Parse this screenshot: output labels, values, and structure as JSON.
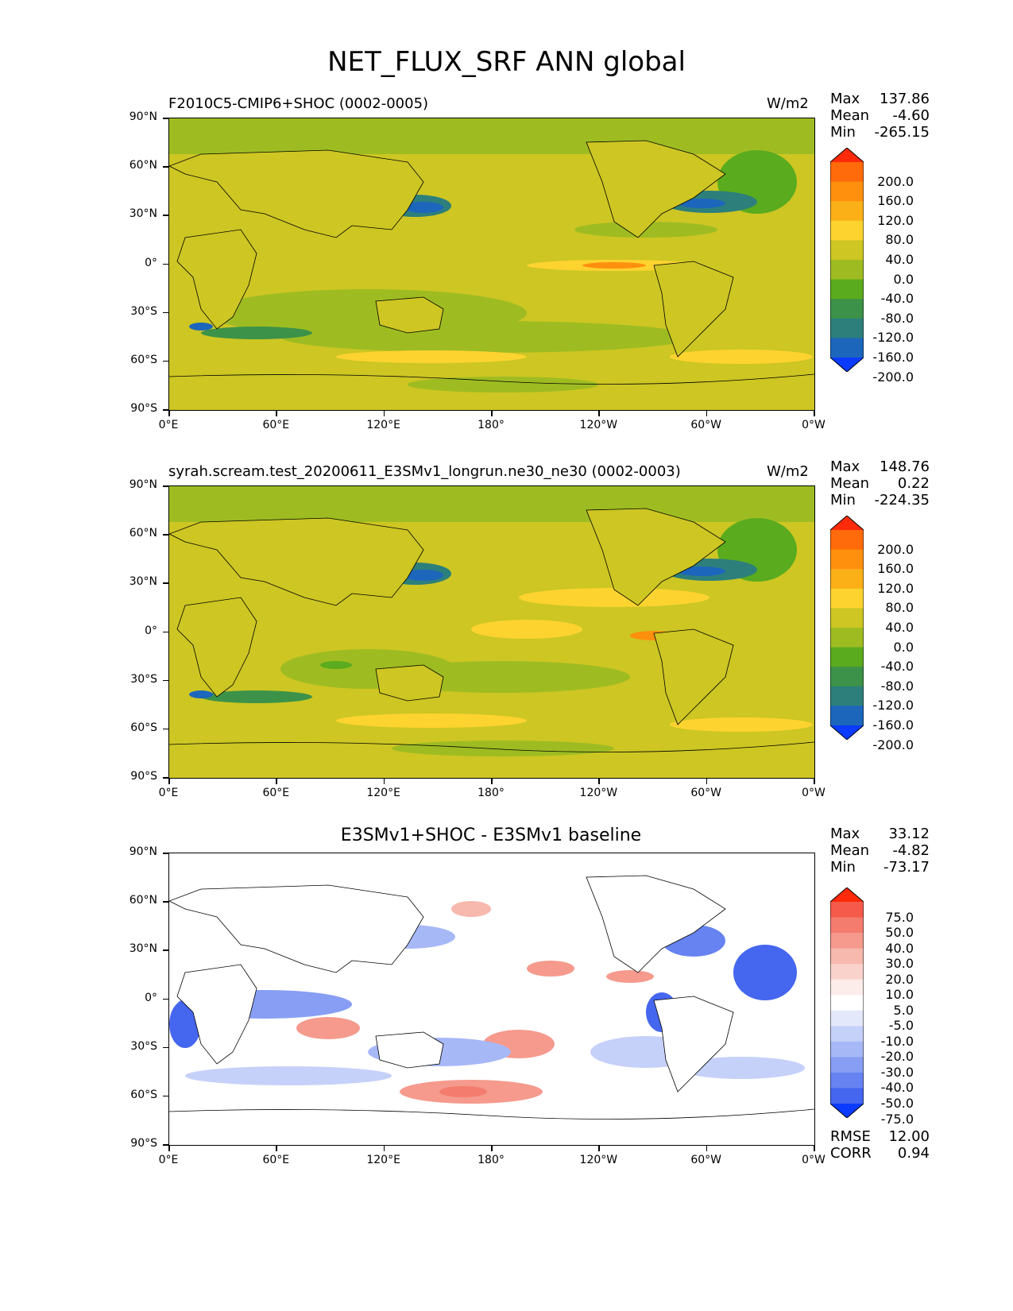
{
  "title": "NET_FLUX_SRF ANN global",
  "lat_labels": [
    "90°N",
    "60°N",
    "30°N",
    "0°",
    "30°S",
    "60°S",
    "90°S"
  ],
  "lon_labels": [
    "0°E",
    "60°E",
    "120°E",
    "180°",
    "120°W",
    "60°W",
    "0°W"
  ],
  "panels": [
    {
      "left_title": "F2010C5-CMIP6+SHOC (0002-0005)",
      "right_title": "W/m2",
      "center_title": "",
      "stats": {
        "max_label": "Max",
        "max": "137.86",
        "mean_label": "Mean",
        "mean": "-4.60",
        "min_label": "Min",
        "min": "-265.15"
      },
      "colorbar_labels": [
        "200.0",
        "160.0",
        "120.0",
        "80.0",
        "40.0",
        "0.0",
        "-40.0",
        "-80.0",
        "-120.0",
        "-160.0",
        "-200.0"
      ],
      "colorbar_colors": [
        "#ff2a0a",
        "#ff6a0a",
        "#ff900e",
        "#fcb017",
        "#fdd330",
        "#cdc623",
        "#9ebc22",
        "#5aab1e",
        "#3c9248",
        "#2d7f7c",
        "#1c66bc",
        "#0a3bff"
      ]
    },
    {
      "left_title": "syrah.scream.test_20200611_E3SMv1_longrun.ne30_ne30 (0002-0003)",
      "right_title": "W/m2",
      "center_title": "",
      "stats": {
        "max_label": "Max",
        "max": "148.76",
        "mean_label": "Mean",
        "mean": "0.22",
        "min_label": "Min",
        "min": "-224.35"
      },
      "colorbar_labels": [
        "200.0",
        "160.0",
        "120.0",
        "80.0",
        "40.0",
        "0.0",
        "-40.0",
        "-80.0",
        "-120.0",
        "-160.0",
        "-200.0"
      ],
      "colorbar_colors": [
        "#ff2a0a",
        "#ff6a0a",
        "#ff900e",
        "#fcb017",
        "#fdd330",
        "#cdc623",
        "#9ebc22",
        "#5aab1e",
        "#3c9248",
        "#2d7f7c",
        "#1c66bc",
        "#0a3bff"
      ]
    },
    {
      "left_title": "",
      "right_title": "",
      "center_title": "E3SMv1+SHOC - E3SMv1 baseline",
      "stats": {
        "max_label": "Max",
        "max": "33.12",
        "mean_label": "Mean",
        "mean": "-4.82",
        "min_label": "Min",
        "min": "-73.17"
      },
      "colorbar_labels": [
        "75.0",
        "50.0",
        "40.0",
        "30.0",
        "20.0",
        "10.0",
        "5.0",
        "-5.0",
        "-10.0",
        "-20.0",
        "-30.0",
        "-40.0",
        "-50.0",
        "-75.0"
      ],
      "colorbar_colors": [
        "#ff2a0a",
        "#f65a4a",
        "#f47c6f",
        "#f59a8d",
        "#f7b8ad",
        "#f9d3cb",
        "#fcecea",
        "#ffffff",
        "#e4e8fb",
        "#c6d1fa",
        "#a7b8f7",
        "#879ef4",
        "#6683f1",
        "#4566ee",
        "#0a3bff"
      ]
    }
  ],
  "footer": {
    "rmse_label": "RMSE",
    "rmse": "12.00",
    "corr_label": "CORR",
    "corr": "0.94"
  }
}
